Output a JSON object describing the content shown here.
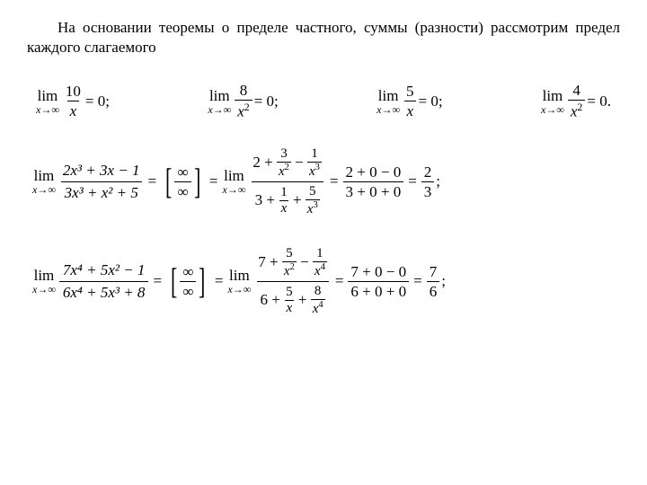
{
  "intro": "На основании теоремы о пределе частного, суммы (разности) рассмотрим предел каждого слагаемого",
  "lim_word": "lim",
  "lim_sub": "x→∞",
  "row1": {
    "a": {
      "num": "10",
      "den": "x",
      "rhs": "= 0;"
    },
    "b": {
      "num": "8",
      "den": "x",
      "denexp": "2",
      "rhs": "= 0;"
    },
    "c": {
      "num": "5",
      "den": "x",
      "rhs": "= 0;"
    },
    "d": {
      "num": "4",
      "den": "x",
      "denexp": "2",
      "rhs": "= 0."
    }
  },
  "eq": "=",
  "semicolon": ";",
  "inf": "∞",
  "row2": {
    "lhs_num": "2x³ + 3x − 1",
    "lhs_den": "3x³ + x² + 5",
    "mid_num_pre": "2 +",
    "mid_num_t1": {
      "n": "3",
      "d": "x",
      "e": "2"
    },
    "mid_num_sep": "−",
    "mid_num_t2": {
      "n": "1",
      "d": "x",
      "e": "3"
    },
    "mid_den_pre": "3 +",
    "mid_den_t1": {
      "n": "1",
      "d": "x"
    },
    "mid_den_sep": "+",
    "mid_den_t2": {
      "n": "5",
      "d": "x",
      "e": "3"
    },
    "calc_num": "2 + 0 − 0",
    "calc_den": "3 + 0 + 0",
    "res_num": "2",
    "res_den": "3"
  },
  "row3": {
    "lhs_num": "7x⁴ + 5x² − 1",
    "lhs_den": "6x⁴ + 5x³ + 8",
    "mid_num_pre": "7 +",
    "mid_num_t1": {
      "n": "5",
      "d": "x",
      "e": "2"
    },
    "mid_num_sep": "−",
    "mid_num_t2": {
      "n": "1",
      "d": "x",
      "e": "4"
    },
    "mid_den_pre": "6 +",
    "mid_den_t1": {
      "n": "5",
      "d": "x"
    },
    "mid_den_sep": "+",
    "mid_den_t2": {
      "n": "8",
      "d": "x",
      "e": "4"
    },
    "calc_num": "7 + 0 − 0",
    "calc_den": "6 + 0 + 0",
    "res_num": "7",
    "res_den": "6"
  }
}
